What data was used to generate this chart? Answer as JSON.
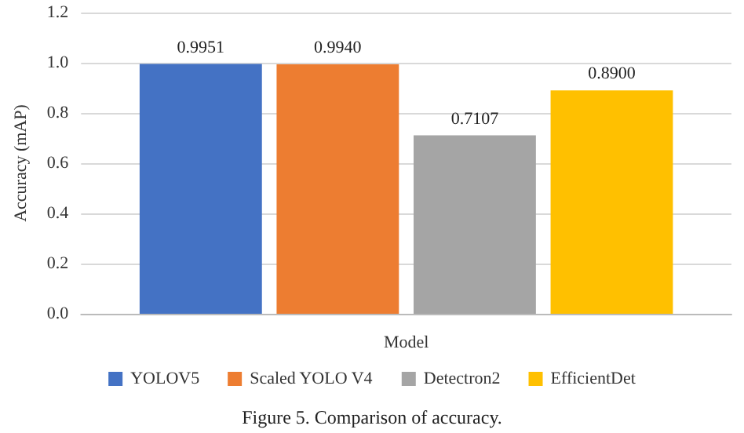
{
  "chart_data": {
    "type": "bar",
    "xlabel": "Model",
    "ylabel": "Accuracy (mAP)",
    "categories": [
      null
    ],
    "series": [
      {
        "name": "YOLOV5",
        "color": "#4472c4",
        "values": [
          0.9951
        ],
        "value_labels": [
          "0.9951"
        ]
      },
      {
        "name": "Scaled YOLO V4",
        "color": "#ed7d31",
        "values": [
          0.994
        ],
        "value_labels": [
          "0.9940"
        ]
      },
      {
        "name": "Detectron2",
        "color": "#a5a5a5",
        "values": [
          0.7107
        ],
        "value_labels": [
          "0.7107"
        ]
      },
      {
        "name": "EfficientDet",
        "color": "#ffc000",
        "values": [
          0.89
        ],
        "value_labels": [
          "0.8900"
        ]
      }
    ],
    "ylim": [
      0,
      1.2
    ],
    "yticks": [
      {
        "value": 0,
        "label": "0.0"
      },
      {
        "value": 0.2,
        "label": "0.2"
      },
      {
        "value": 0.4,
        "label": "0.4"
      },
      {
        "value": 0.6,
        "label": "0.6"
      },
      {
        "value": 0.8,
        "label": "0.8"
      },
      {
        "value": 1,
        "label": "1.0"
      },
      {
        "value": 1.2,
        "label": "1.2"
      }
    ],
    "grid": "y",
    "legend": "bottom",
    "annotations": [
      "Figure 5. Comparison of accuracy."
    ]
  }
}
